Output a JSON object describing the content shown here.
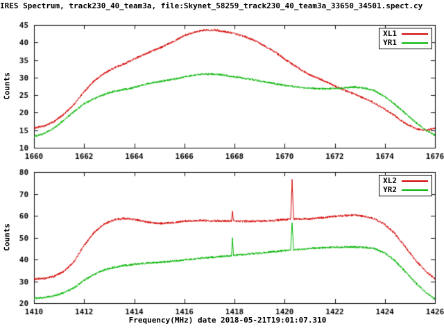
{
  "header": {
    "title": "IRES Spectrum, track230_40_team3a, file:Skynet_58259_track230_40_team3a_33650_34501.spect.cy"
  },
  "footer": {
    "xlabel": "Frequency(MHz) date 2018-05-21T19:01:07.310"
  },
  "colors": {
    "series_red": "#d40000",
    "series_green": "#00b400",
    "axis": "#000000",
    "background": "#ffffff"
  },
  "chart_data": [
    {
      "type": "line",
      "panel": "top",
      "ylabel": "Counts",
      "xlim": [
        1660,
        1676
      ],
      "ylim": [
        10,
        45
      ],
      "xticks": [
        1660,
        1662,
        1664,
        1666,
        1668,
        1670,
        1672,
        1674,
        1676
      ],
      "yticks": [
        10,
        15,
        20,
        25,
        30,
        35,
        40,
        45
      ],
      "grid": false,
      "legend_position": "top-right",
      "series": [
        {
          "name": "XL1",
          "color": "#d40000",
          "noise": 0.3,
          "points": [
            [
              1660,
              15.6
            ],
            [
              1660.4,
              16.2
            ],
            [
              1660.8,
              17.4
            ],
            [
              1661.2,
              19.6
            ],
            [
              1661.6,
              22.4
            ],
            [
              1662,
              26.0
            ],
            [
              1662.4,
              29.0
            ],
            [
              1662.8,
              31.2
            ],
            [
              1663.2,
              32.8
            ],
            [
              1663.6,
              33.9
            ],
            [
              1664,
              35.3
            ],
            [
              1664.4,
              36.6
            ],
            [
              1664.8,
              37.9
            ],
            [
              1665.2,
              39.0
            ],
            [
              1665.6,
              40.5
            ],
            [
              1666,
              42.0
            ],
            [
              1666.4,
              43.0
            ],
            [
              1666.8,
              43.5
            ],
            [
              1667.2,
              43.6
            ],
            [
              1667.6,
              43.1
            ],
            [
              1668,
              42.6
            ],
            [
              1668.4,
              41.7
            ],
            [
              1668.8,
              40.6
            ],
            [
              1669.2,
              39.0
            ],
            [
              1669.6,
              37.4
            ],
            [
              1670,
              35.3
            ],
            [
              1670.4,
              33.4
            ],
            [
              1670.8,
              31.6
            ],
            [
              1671.2,
              30.2
            ],
            [
              1671.6,
              29.0
            ],
            [
              1672,
              27.6
            ],
            [
              1672.4,
              26.4
            ],
            [
              1673,
              24.6
            ],
            [
              1673.4,
              23.4
            ],
            [
              1674,
              21.0
            ],
            [
              1674.4,
              19.1
            ],
            [
              1674.8,
              17.0
            ],
            [
              1675.2,
              15.6
            ],
            [
              1675.5,
              14.9
            ],
            [
              1675.8,
              15.2
            ],
            [
              1676,
              15.6
            ]
          ]
        },
        {
          "name": "YR1",
          "color": "#00b400",
          "noise": 0.3,
          "points": [
            [
              1660,
              13.2
            ],
            [
              1660.4,
              14.0
            ],
            [
              1660.8,
              15.6
            ],
            [
              1661.2,
              17.9
            ],
            [
              1661.6,
              20.3
            ],
            [
              1662,
              22.5
            ],
            [
              1662.4,
              24.0
            ],
            [
              1662.8,
              25.2
            ],
            [
              1663.2,
              26.1
            ],
            [
              1663.6,
              26.6
            ],
            [
              1664,
              27.2
            ],
            [
              1664.4,
              28.0
            ],
            [
              1664.8,
              28.6
            ],
            [
              1665.2,
              29.1
            ],
            [
              1665.6,
              29.6
            ],
            [
              1666,
              30.2
            ],
            [
              1666.4,
              30.7
            ],
            [
              1666.8,
              31.0
            ],
            [
              1667.2,
              31.0
            ],
            [
              1667.6,
              30.7
            ],
            [
              1668,
              30.2
            ],
            [
              1668.4,
              29.8
            ],
            [
              1668.8,
              29.3
            ],
            [
              1669.2,
              28.8
            ],
            [
              1669.6,
              28.3
            ],
            [
              1670,
              27.8
            ],
            [
              1670.4,
              27.4
            ],
            [
              1670.8,
              27.1
            ],
            [
              1671.2,
              26.9
            ],
            [
              1671.6,
              26.8
            ],
            [
              1672,
              26.9
            ],
            [
              1672.4,
              27.1
            ],
            [
              1672.8,
              27.3
            ],
            [
              1673.2,
              27.0
            ],
            [
              1673.6,
              26.2
            ],
            [
              1674,
              24.6
            ],
            [
              1674.4,
              22.4
            ],
            [
              1674.8,
              19.9
            ],
            [
              1675.2,
              17.4
            ],
            [
              1675.6,
              15.2
            ],
            [
              1676,
              13.6
            ]
          ]
        }
      ]
    },
    {
      "type": "line",
      "panel": "bottom",
      "ylabel": "Counts",
      "xlim": [
        1410,
        1426
      ],
      "ylim": [
        20,
        80
      ],
      "xticks": [
        1410,
        1412,
        1414,
        1416,
        1418,
        1420,
        1422,
        1424,
        1426
      ],
      "yticks": [
        20,
        30,
        40,
        50,
        60,
        70,
        80
      ],
      "grid": false,
      "legend_position": "top-right",
      "series": [
        {
          "name": "XL2",
          "color": "#d40000",
          "noise": 0.5,
          "points": [
            [
              1410,
              31.0
            ],
            [
              1410.4,
              31.3
            ],
            [
              1410.8,
              32.2
            ],
            [
              1411.2,
              34.6
            ],
            [
              1411.6,
              39.0
            ],
            [
              1412,
              46.5
            ],
            [
              1412.4,
              52.3
            ],
            [
              1412.8,
              56.2
            ],
            [
              1413.2,
              58.2
            ],
            [
              1413.6,
              58.8
            ],
            [
              1414,
              58.3
            ],
            [
              1414.4,
              57.4
            ],
            [
              1414.8,
              56.7
            ],
            [
              1415.2,
              56.5
            ],
            [
              1415.6,
              57.0
            ],
            [
              1416,
              57.6
            ],
            [
              1416.4,
              57.8
            ],
            [
              1416.8,
              57.8
            ],
            [
              1417.2,
              57.7
            ],
            [
              1417.6,
              57.6
            ],
            [
              1417.88,
              57.6
            ],
            [
              1417.92,
              62.0
            ],
            [
              1417.96,
              57.6
            ],
            [
              1418.4,
              57.5
            ],
            [
              1418.8,
              57.5
            ],
            [
              1419.2,
              57.6
            ],
            [
              1419.6,
              57.8
            ],
            [
              1420,
              58.3
            ],
            [
              1420.24,
              58.4
            ],
            [
              1420.3,
              76.2
            ],
            [
              1420.36,
              58.5
            ],
            [
              1420.8,
              58.6
            ],
            [
              1421.2,
              58.8
            ],
            [
              1421.6,
              59.2
            ],
            [
              1422,
              59.7
            ],
            [
              1422.4,
              60.1
            ],
            [
              1422.8,
              60.2
            ],
            [
              1423.2,
              59.7
            ],
            [
              1423.6,
              58.5
            ],
            [
              1424,
              56.0
            ],
            [
              1424.4,
              51.8
            ],
            [
              1424.8,
              46.0
            ],
            [
              1425.2,
              40.0
            ],
            [
              1425.6,
              34.8
            ],
            [
              1426,
              31.2
            ]
          ]
        },
        {
          "name": "YR2",
          "color": "#00b400",
          "noise": 0.5,
          "points": [
            [
              1410,
              22.2
            ],
            [
              1410.4,
              22.5
            ],
            [
              1410.8,
              23.3
            ],
            [
              1411.2,
              24.8
            ],
            [
              1411.6,
              27.0
            ],
            [
              1412,
              30.4
            ],
            [
              1412.4,
              33.2
            ],
            [
              1412.8,
              35.2
            ],
            [
              1413.2,
              36.4
            ],
            [
              1413.6,
              37.2
            ],
            [
              1414,
              37.8
            ],
            [
              1414.4,
              38.2
            ],
            [
              1414.8,
              38.5
            ],
            [
              1415.2,
              38.9
            ],
            [
              1415.6,
              39.3
            ],
            [
              1416,
              39.8
            ],
            [
              1416.4,
              40.2
            ],
            [
              1416.8,
              40.7
            ],
            [
              1417.2,
              41.1
            ],
            [
              1417.6,
              41.5
            ],
            [
              1417.88,
              41.8
            ],
            [
              1417.92,
              49.8
            ],
            [
              1417.96,
              41.9
            ],
            [
              1418.4,
              42.3
            ],
            [
              1418.8,
              42.7
            ],
            [
              1419.2,
              43.1
            ],
            [
              1419.6,
              43.6
            ],
            [
              1420,
              44.1
            ],
            [
              1420.24,
              44.3
            ],
            [
              1420.3,
              56.8
            ],
            [
              1420.36,
              44.4
            ],
            [
              1420.8,
              44.8
            ],
            [
              1421.2,
              45.2
            ],
            [
              1421.6,
              45.4
            ],
            [
              1422,
              45.6
            ],
            [
              1422.4,
              45.7
            ],
            [
              1422.8,
              45.7
            ],
            [
              1423.2,
              45.5
            ],
            [
              1423.6,
              44.9
            ],
            [
              1424,
              43.0
            ],
            [
              1424.4,
              39.5
            ],
            [
              1424.8,
              34.6
            ],
            [
              1425.2,
              29.6
            ],
            [
              1425.6,
              25.3
            ],
            [
              1426,
              21.9
            ]
          ]
        }
      ]
    }
  ]
}
